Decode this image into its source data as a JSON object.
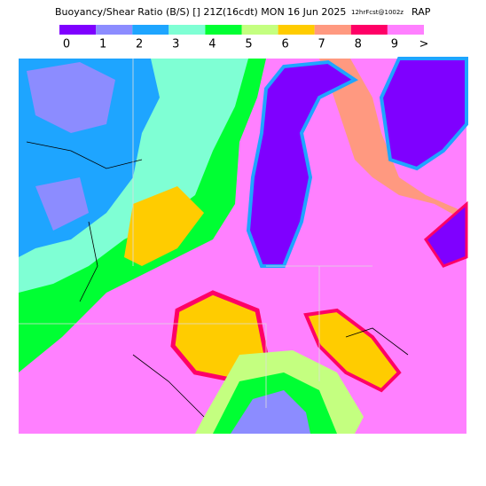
{
  "header": {
    "title": "Buoyancy/Shear Ratio (B/S) [] 21Z(16cdt) MON 16 Jun 2025",
    "forecast": "12hrFcst@1002z",
    "model": "RAP"
  },
  "legend": [
    {
      "label": "0",
      "color": "#7f00ff"
    },
    {
      "label": "1",
      "color": "#8c8cff"
    },
    {
      "label": "2",
      "color": "#1ea5ff"
    },
    {
      "label": "3",
      "color": "#7fffd4"
    },
    {
      "label": "4",
      "color": "#00ff33"
    },
    {
      "label": "5",
      "color": "#c4ff80"
    },
    {
      "label": "6",
      "color": "#ffcc00"
    },
    {
      "label": "7",
      "color": "#ff9980"
    },
    {
      "label": "8",
      "color": "#ff0066"
    },
    {
      "label": "9",
      "color": "#ff80ff"
    }
  ],
  "overflow_label": ">"
}
